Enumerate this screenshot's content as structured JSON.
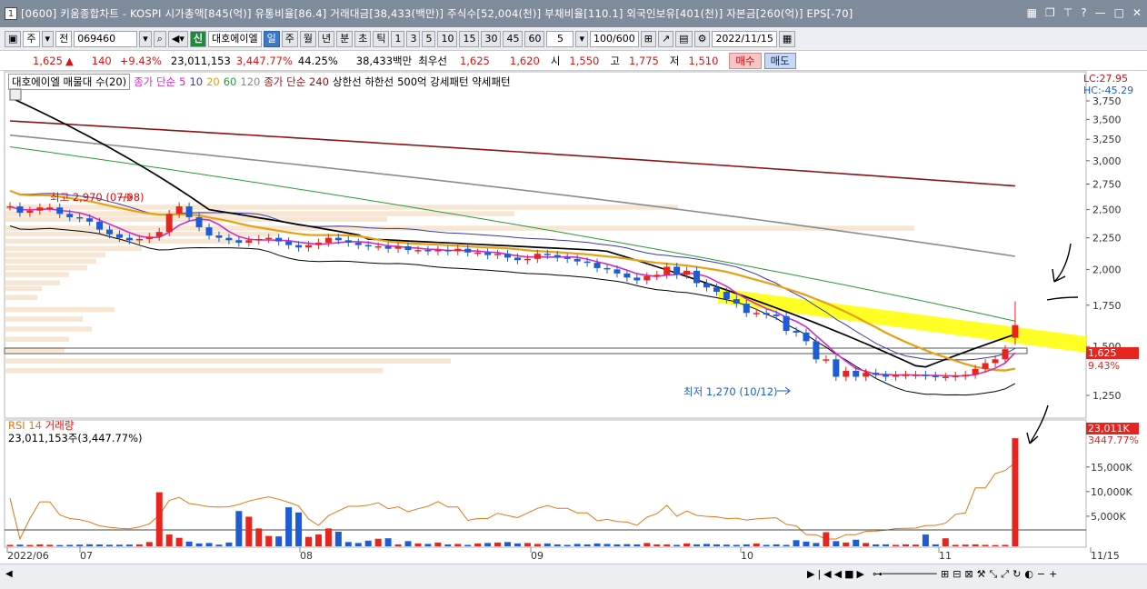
{
  "window": {
    "number": "1",
    "title": "[0600] 키움종합차트 - KOSPI 시가총액[845(억)] 유통비율[86.4] 거래대금[38,433(백만)] 주식수[52,004(천)] 부채비율[110.1] 외국인보유[401(천)] 자본금[260(억)] EPS[-70]"
  },
  "toolbar": {
    "period_week": "주",
    "period_label": "전",
    "code": "069460",
    "signal": "신",
    "stock_name": "대호에이엘",
    "tabs": [
      "일",
      "주",
      "월",
      "년",
      "분",
      "초",
      "틱"
    ],
    "active_tab": "일",
    "minute_steps": [
      "1",
      "3",
      "5",
      "10",
      "15",
      "30",
      "45",
      "60"
    ],
    "custom_step": "5",
    "count": "100",
    "count_max": "/600",
    "date": "2022/11/15"
  },
  "quote": {
    "price": "1,625",
    "change": "140",
    "change_pct": "+9.43%",
    "volume": "23,011,153",
    "volume_ratio": "3,447.77%",
    "turnover": "44.25%",
    "amount": "38,433백만",
    "bid_label": "최우선",
    "best_ask": "1,625",
    "best_bid": "1,620",
    "open_label": "시",
    "open": "1,550",
    "high_label": "고",
    "high": "1,775",
    "low_label": "저",
    "low": "1,510",
    "buy_label": "매수",
    "sell_label": "매도"
  },
  "legend": {
    "title": "대호에이엘 매물대 수(20)",
    "ma_label": "종가 단순",
    "ma_periods": [
      "5",
      "10",
      "20",
      "60",
      "120"
    ],
    "ma_long_label": "종가 단순 240",
    "limit_labels": "상한선 하한선",
    "pattern_label": "500억 강세패턴 약세패턴",
    "lc": "LC:27.95",
    "hc": "HC:-45.29"
  },
  "annotations": {
    "high_text": "최고 2,970 (07/08)",
    "low_text": "최저 1,270 (10/12)",
    "last_price_tag": "1,625",
    "last_pct_tag": "9.43%",
    "vol_tag": "23,011K",
    "vol_pct_tag": "3447.77%"
  },
  "volume_panel": {
    "legend_rsi": "RSI 14",
    "legend_vol": "거래량",
    "value_text": "23,011,153주(3,447.77%)"
  },
  "colors": {
    "up": "#e8241e",
    "down": "#1e5bd6",
    "ma5": "#d428c8",
    "ma10": "#3a3aa8",
    "ma20": "#e8a010",
    "ma60": "#2a9a3a",
    "ma120": "#8c8c8c",
    "ma240": "#8a1414",
    "black_line": "#000000",
    "highlight": "#ffff00",
    "profile": "#f6e6d2"
  },
  "chart_data": [
    {
      "type": "candlestick",
      "title": "",
      "x_tick_labels": [
        "2022/06",
        "07",
        "08",
        "09",
        "10",
        "11",
        "11/15"
      ],
      "ylim": [
        1100,
        3850
      ],
      "y_ticks": [
        1250,
        1500,
        1750,
        2000,
        2250,
        2500,
        2750,
        3000,
        3250,
        3500,
        3750
      ],
      "y_tick_labels": [
        "1,250",
        "1,500",
        "1,750",
        "2,000",
        "2,250",
        "2,500",
        "2,750",
        "3,000",
        "3,250",
        "3,500",
        "3,750"
      ],
      "series_close": [
        2530,
        2470,
        2490,
        2520,
        2520,
        2460,
        2430,
        2420,
        2390,
        2320,
        2280,
        2250,
        2230,
        2240,
        2260,
        2300,
        2460,
        2530,
        2430,
        2340,
        2270,
        2250,
        2230,
        2210,
        2230,
        2240,
        2250,
        2220,
        2190,
        2170,
        2190,
        2210,
        2250,
        2230,
        2210,
        2190,
        2180,
        2180,
        2160,
        2180,
        2150,
        2150,
        2140,
        2150,
        2140,
        2160,
        2130,
        2130,
        2110,
        2120,
        2090,
        2070,
        2080,
        2120,
        2110,
        2090,
        2080,
        2060,
        2050,
        2010,
        2000,
        1970,
        1940,
        1920,
        1950,
        1960,
        2020,
        1960,
        1990,
        1900,
        1870,
        1840,
        1790,
        1760,
        1700,
        1700,
        1690,
        1680,
        1590,
        1580,
        1530,
        1430,
        1430,
        1340,
        1370,
        1340,
        1360,
        1350,
        1340,
        1350,
        1350,
        1350,
        1345,
        1340,
        1340,
        1345,
        1350,
        1380,
        1410,
        1430,
        1485,
        1625
      ],
      "high": {
        "value": 2970,
        "date": "07/08",
        "label": "최고 2,970 (07/08)"
      },
      "low": {
        "value": 1270,
        "date": "10/12",
        "label": "최저 1,270 (10/12)"
      },
      "last": {
        "close": 1625,
        "open": 1550,
        "high": 1775,
        "low": 1510,
        "change": 140,
        "change_pct": 9.43
      }
    },
    {
      "type": "bar",
      "title": "",
      "y_ticks": [
        5000,
        10000,
        15000
      ],
      "y_tick_labels": [
        "5,000K",
        "10,000K",
        "15,000K"
      ],
      "ylim": [
        0,
        24000
      ],
      "volume_k": [
        300,
        350,
        280,
        400,
        320,
        260,
        300,
        350,
        420,
        380,
        320,
        330,
        360,
        400,
        900,
        11500,
        2500,
        1800,
        1000,
        600,
        700,
        350,
        800,
        7500,
        6300,
        3800,
        2200,
        2100,
        8300,
        7200,
        2000,
        2500,
        3800,
        3100,
        900,
        700,
        1200,
        1600,
        1700,
        400,
        1100,
        600,
        500,
        800,
        400,
        500,
        300,
        600,
        700,
        800,
        900,
        600,
        700,
        500,
        600,
        400,
        300,
        500,
        400,
        600,
        500,
        400,
        450,
        400,
        700,
        400,
        400,
        300,
        600,
        400,
        500,
        400,
        350,
        300,
        400,
        600,
        300,
        400,
        300,
        1300,
        1000,
        700,
        3000,
        1100,
        800,
        1400,
        700,
        400,
        400,
        300,
        400,
        350,
        2500,
        400,
        1700,
        300,
        350,
        400,
        300,
        250,
        300,
        23011
      ]
    }
  ]
}
